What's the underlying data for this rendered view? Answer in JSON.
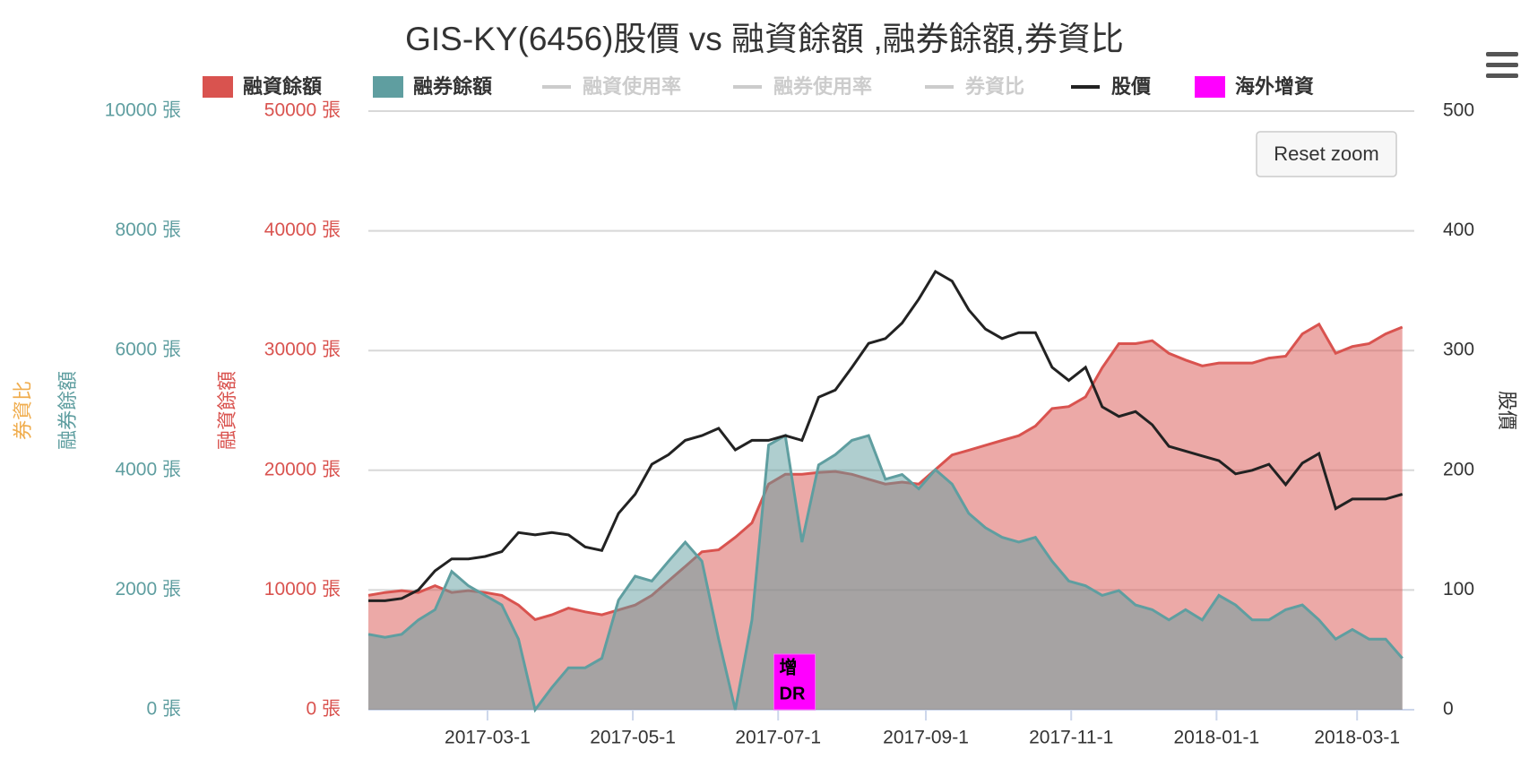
{
  "chart_data": {
    "type": "area",
    "title": "GIS-KY(6456)股價 vs 融資餘額 ,融券餘額,券資比",
    "x": [
      "2017-01-10",
      "2017-01-17",
      "2017-01-24",
      "2017-01-31",
      "2017-02-07",
      "2017-02-14",
      "2017-02-21",
      "2017-02-28",
      "2017-03-07",
      "2017-03-14",
      "2017-03-21",
      "2017-03-28",
      "2017-04-04",
      "2017-04-11",
      "2017-04-18",
      "2017-04-25",
      "2017-05-02",
      "2017-05-09",
      "2017-05-16",
      "2017-05-23",
      "2017-05-30",
      "2017-06-06",
      "2017-06-13",
      "2017-06-20",
      "2017-06-27",
      "2017-07-04",
      "2017-07-11",
      "2017-07-18",
      "2017-07-25",
      "2017-08-01",
      "2017-08-08",
      "2017-08-15",
      "2017-08-22",
      "2017-08-29",
      "2017-09-05",
      "2017-09-12",
      "2017-09-19",
      "2017-09-26",
      "2017-10-03",
      "2017-10-10",
      "2017-10-17",
      "2017-10-24",
      "2017-10-31",
      "2017-11-07",
      "2017-11-14",
      "2017-11-21",
      "2017-11-28",
      "2017-12-05",
      "2017-12-12",
      "2017-12-19",
      "2017-12-26",
      "2018-01-02",
      "2018-01-09",
      "2018-01-16",
      "2018-01-23",
      "2018-01-30",
      "2018-02-06",
      "2018-02-13",
      "2018-02-20",
      "2018-02-27",
      "2018-03-06",
      "2018-03-13",
      "2018-03-20"
    ],
    "xlim": [
      "2017-01-10",
      "2018-03-25"
    ],
    "xticks": [
      {
        "value": "2017-03-01",
        "label": "2017-03-1"
      },
      {
        "value": "2017-05-01",
        "label": "2017-05-1"
      },
      {
        "value": "2017-07-01",
        "label": "2017-07-1"
      },
      {
        "value": "2017-09-01",
        "label": "2017-09-1"
      },
      {
        "value": "2017-11-01",
        "label": "2017-11-1"
      },
      {
        "value": "2018-01-01",
        "label": "2018-01-1"
      },
      {
        "value": "2018-03-01",
        "label": "2018-03-1"
      }
    ],
    "y_label": "融資餘額",
    "ylim": [
      0,
      50000
    ],
    "yticks": [
      {
        "value": 0,
        "label": "0 張"
      },
      {
        "value": 10000,
        "label": "10000 張"
      },
      {
        "value": 20000,
        "label": "20000 張"
      },
      {
        "value": 30000,
        "label": "30000 張"
      },
      {
        "value": 40000,
        "label": "40000 張"
      },
      {
        "value": 50000,
        "label": "50000 張"
      }
    ],
    "y3_label": "融券餘額",
    "y3lim": [
      0,
      10000
    ],
    "y3ticks": [
      {
        "value": 0,
        "label": "0 張"
      },
      {
        "value": 2000,
        "label": "2000 張"
      },
      {
        "value": 4000,
        "label": "4000 張"
      },
      {
        "value": 6000,
        "label": "6000 張"
      },
      {
        "value": 8000,
        "label": "8000 張"
      },
      {
        "value": 10000,
        "label": "10000 張"
      }
    ],
    "y4_label": "券資比",
    "y2_label": "股價",
    "y2lim": [
      0,
      500
    ],
    "y2ticks": [
      0,
      100,
      200,
      300,
      400,
      500
    ],
    "grid": true,
    "reset_button": "Reset zoom",
    "series": [
      {
        "name": "融資餘額",
        "color": "#d9534f",
        "type": "area",
        "axis": "y",
        "values": [
          9550,
          9790,
          9950,
          9790,
          10360,
          9790,
          9950,
          9790,
          9550,
          8740,
          7520,
          7930,
          8490,
          8170,
          7930,
          8330,
          8740,
          9550,
          10760,
          11970,
          13190,
          13350,
          14400,
          15610,
          18850,
          19660,
          19660,
          19820,
          19900,
          19660,
          19250,
          18850,
          19010,
          18850,
          20060,
          21280,
          21680,
          22090,
          22490,
          22890,
          23700,
          25160,
          25320,
          26130,
          28560,
          30580,
          30580,
          30820,
          29770,
          29210,
          28720,
          28960,
          28960,
          28960,
          29370,
          29530,
          31390,
          32200,
          29770,
          30340,
          30580,
          31390,
          31960
        ]
      },
      {
        "name": "融券餘額",
        "color": "#5f9ea0",
        "type": "area",
        "axis": "y3",
        "values": [
          1260,
          1210,
          1260,
          1500,
          1670,
          2310,
          2070,
          1910,
          1750,
          1180,
          0,
          370,
          700,
          700,
          860,
          1830,
          2230,
          2150,
          2480,
          2800,
          2480,
          1180,
          0,
          1500,
          4420,
          4580,
          2800,
          4090,
          4260,
          4500,
          4580,
          3850,
          3930,
          3690,
          4010,
          3770,
          3280,
          3040,
          2880,
          2800,
          2880,
          2480,
          2150,
          2070,
          1910,
          1990,
          1750,
          1670,
          1500,
          1670,
          1500,
          1910,
          1750,
          1500,
          1500,
          1670,
          1750,
          1500,
          1180,
          1340,
          1180,
          1180,
          860
        ]
      },
      {
        "name": "融資使用率",
        "visible": false
      },
      {
        "name": "融券使用率",
        "visible": false
      },
      {
        "name": "券資比",
        "visible": false
      },
      {
        "name": "股價",
        "color": "#222222",
        "type": "line",
        "axis": "y2",
        "values": [
          91,
          91,
          93,
          100,
          116,
          126,
          126,
          128,
          132,
          148,
          146,
          148,
          146,
          136,
          133,
          164,
          180,
          205,
          213,
          225,
          229,
          235,
          217,
          225,
          225,
          229,
          225,
          261,
          267,
          286,
          306,
          310,
          323,
          343,
          366,
          358,
          334,
          318,
          310,
          315,
          315,
          286,
          275,
          286,
          253,
          245,
          249,
          238,
          220,
          216,
          212,
          208,
          197,
          200,
          205,
          188,
          206,
          214,
          168,
          176,
          176,
          176,
          180
        ]
      },
      {
        "name": "海外增資",
        "color": "#ff00ff",
        "type": "flags",
        "flags": [
          {
            "x": "2017-07-03",
            "lines": [
              "增",
              "DR"
            ]
          }
        ]
      }
    ]
  }
}
